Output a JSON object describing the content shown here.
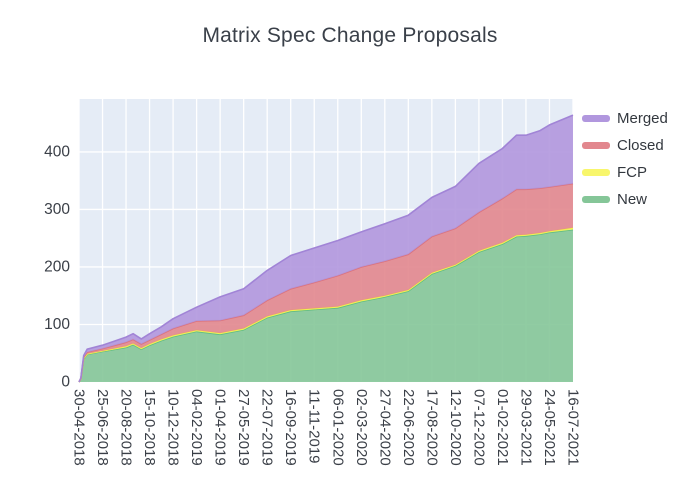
{
  "chart_data": {
    "type": "area",
    "stacked": true,
    "title": "Matrix Spec Change Proposals",
    "xlabel": "",
    "ylabel": "",
    "grid": true,
    "plot_bg_color": "#e5ecf6",
    "grid_color": "#ffffff",
    "text_color": "#3a3f47",
    "legend_position": "right-top-outside",
    "y_ticks": [
      0,
      100,
      200,
      300,
      400
    ],
    "y_range": [
      0,
      492
    ],
    "x_tick_labels": [
      "30-04-2018",
      "25-06-2018",
      "20-08-2018",
      "15-10-2018",
      "10-12-2018",
      "04-02-2019",
      "01-04-2019",
      "27-05-2019",
      "22-07-2019",
      "16-09-2019",
      "11-11-2019",
      "06-01-2020",
      "02-03-2020",
      "27-04-2020",
      "22-06-2020",
      "17-08-2020",
      "12-10-2020",
      "07-12-2020",
      "01-02-2021",
      "29-03-2021",
      "24-05-2021",
      "16-07-2021"
    ],
    "x_points_tick_units": [
      0,
      0.08,
      0.2,
      0.35,
      1,
      2,
      2.3,
      2.65,
      3,
      3.5,
      4,
      5,
      6,
      7,
      8,
      9,
      10,
      11,
      12,
      13,
      14,
      15,
      16,
      17,
      17.5,
      18,
      18.6,
      19,
      19.6,
      20,
      21
    ],
    "series_order_bottom_to_top": [
      "New",
      "FCP",
      "Closed",
      "Merged"
    ],
    "series": [
      {
        "name": "Merged",
        "fill_color": "#b197de",
        "line_color": "#a184d6",
        "values": [
          0,
          1,
          3,
          5,
          6,
          9,
          10,
          9,
          11,
          13,
          17,
          24,
          41,
          46,
          52,
          58,
          60,
          61,
          61,
          65,
          68,
          68,
          73,
          85,
          86,
          87,
          94,
          94,
          100,
          108,
          119
        ]
      },
      {
        "name": "Closed",
        "fill_color": "#e2878e",
        "line_color": "#dc737c",
        "values": [
          0,
          1,
          2,
          3,
          4,
          7,
          7,
          7,
          7,
          9,
          12,
          16,
          22,
          23,
          28,
          37,
          45,
          54,
          58,
          60,
          62,
          63,
          63,
          67,
          72,
          77,
          80,
          79,
          78,
          77,
          77
        ]
      },
      {
        "name": "FCP",
        "fill_color": "#f8f66c",
        "line_color": "#f2ef4a",
        "values": [
          0,
          0,
          1,
          1,
          1,
          2,
          2,
          2,
          2,
          2,
          2,
          2,
          2,
          2,
          2,
          2,
          2,
          2,
          2,
          2,
          2,
          2,
          2,
          2,
          2,
          2,
          2,
          2,
          2,
          2,
          3
        ]
      },
      {
        "name": "New",
        "fill_color": "#85c698",
        "line_color": "#5fbc82",
        "values": [
          0,
          5,
          40,
          48,
          53,
          60,
          65,
          57,
          64,
          72,
          79,
          88,
          83,
          91,
          112,
          123,
          126,
          129,
          140,
          148,
          158,
          188,
          202,
          226,
          233,
          240,
          253,
          254,
          257,
          260,
          265
        ]
      }
    ]
  }
}
